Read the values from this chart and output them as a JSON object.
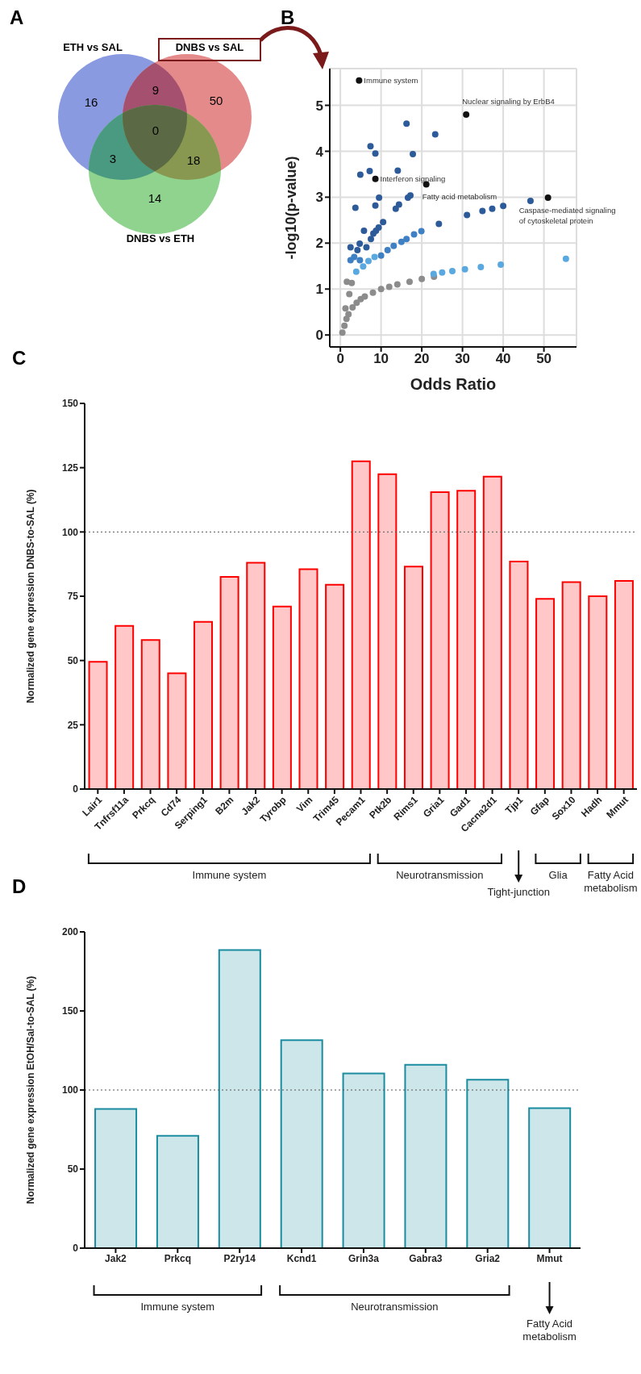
{
  "chart_data": [
    {
      "type": "other",
      "title": "A",
      "categories": [
        null,
        null,
        null,
        null,
        null,
        null,
        null
      ],
      "colors": [
        "#8a9ae0",
        "#a5506e",
        "#e58a8a",
        "#5b6a45",
        "#4a9a82",
        "#889850",
        "#8fd38f"
      ],
      "values": [
        16,
        9,
        50,
        0,
        3,
        18,
        14
      ],
      "data_labels": true,
      "annotations": [
        "ETH vs SAL",
        "DNBS vs SAL",
        "DNBS vs ETH"
      ]
    },
    {
      "type": "scatter",
      "title": "B",
      "xlabel": "Odds Ratio",
      "ylabel": "-log10(p-value)",
      "xlim": [
        -2.6,
        58
      ],
      "xticks": [
        0,
        10,
        20,
        30,
        40,
        50
      ],
      "ylim": [
        -0.26,
        5.8
      ],
      "yticks": [
        0,
        1,
        2,
        3,
        4,
        5
      ],
      "grid": true,
      "marker": "circle",
      "series": [
        {
          "color": "#111111",
          "x": [
            4.6,
            30.9,
            8.6,
            21.1,
            51
          ],
          "values": [
            5.54,
            4.8,
            3.4,
            3.28,
            2.99
          ]
        },
        {
          "color": "#2d5b9a",
          "x": [
            16.25,
            23.3,
            7.4,
            8.6,
            17.8,
            14.1,
            7.2,
            4.9,
            9.5,
            8.6,
            3.7,
            10.5,
            24.2,
            46.7,
            40,
            37.3,
            34.9,
            31.1,
            17.2,
            16.6,
            5.8,
            7.5,
            8.1,
            8.75,
            9.4,
            14.4,
            13.6,
            4.75,
            2.5,
            6.4,
            4.2
          ],
          "values": [
            4.6,
            4.37,
            4.11,
            3.95,
            3.94,
            3.58,
            3.57,
            3.49,
            2.99,
            2.82,
            2.77,
            2.46,
            2.42,
            2.92,
            2.81,
            2.75,
            2.7,
            2.61,
            3.04,
            2.99,
            2.27,
            2.09,
            2.21,
            2.27,
            2.34,
            2.84,
            2.75,
            1.99,
            1.91,
            1.91,
            1.85
          ]
        },
        {
          "color": "#3f7fc4",
          "x": [
            10,
            11.6,
            13.1,
            15,
            16.25,
            18.1,
            19.9,
            4.8,
            2.5,
            3.4
          ],
          "values": [
            1.73,
            1.85,
            1.94,
            2.03,
            2.09,
            2.19,
            2.26,
            1.63,
            1.63,
            1.7
          ]
        },
        {
          "color": "#5aa8e0",
          "x": [
            3.9,
            5.6,
            6.9,
            8.4,
            55.4,
            22.9,
            25,
            27.5,
            30.6,
            34.5,
            39.4
          ],
          "values": [
            1.38,
            1.49,
            1.61,
            1.7,
            1.66,
            1.33,
            1.36,
            1.39,
            1.43,
            1.48,
            1.53
          ]
        },
        {
          "color": "#8c8c8c",
          "x": [
            0.5,
            1,
            1.5,
            2,
            3,
            4,
            5,
            6,
            8,
            10,
            12,
            14,
            17,
            20,
            23,
            1.25,
            2.2,
            2.8,
            1.6
          ],
          "values": [
            0.05,
            0.2,
            0.35,
            0.45,
            0.6,
            0.7,
            0.78,
            0.84,
            0.92,
            1.0,
            1.05,
            1.1,
            1.16,
            1.22,
            1.27,
            0.58,
            0.89,
            1.13,
            1.16
          ]
        }
      ],
      "annotations": [
        {
          "text": "Immune system",
          "x": 4.6,
          "y": 5.54
        },
        {
          "text": "Nuclear signaling by ErbB4",
          "x": 30.9,
          "y": 4.8
        },
        {
          "text": "Interferon signaling",
          "x": 8.6,
          "y": 3.4
        },
        {
          "text": "Fatty acid metabolism",
          "x": 21.1,
          "y": 3.28
        },
        {
          "text": "Caspase-mediated signaling\nof cytoskeletal protein",
          "x": 51,
          "y": 2.99
        }
      ]
    },
    {
      "type": "bar",
      "title": "C",
      "ylabel": "Normalized gene expression DNBS-to-SAL (%)",
      "categories": [
        "Lair1",
        "Tnfrsf11a",
        "Prkcq",
        "Cd74",
        "Serping1",
        "B2m",
        "Jak2",
        "Tyrobp",
        "Vim",
        "Trim45",
        "Pecam1",
        "Ptk2b",
        "Rims1",
        "Gria1",
        "Gad1",
        "Cacna2d1",
        "Tjp1",
        "Gfap",
        "Sox10",
        "Hadh",
        "Mmut"
      ],
      "values": [
        49.5,
        63.5,
        58,
        45,
        65,
        82.5,
        88,
        71,
        85.5,
        79.5,
        127.5,
        122.5,
        86.5,
        115.5,
        116,
        121.5,
        88.5,
        74,
        80.5,
        75,
        81
      ],
      "color": "#ff0000",
      "ylim": [
        0,
        150
      ],
      "yticks": [
        0,
        25,
        50,
        75,
        100,
        125,
        150
      ],
      "ref_lines": [
        {
          "axis": "y",
          "value": 100,
          "color": "#555555",
          "line_style": "dotted"
        }
      ],
      "annotations": [
        "Immune system",
        "Neurotransmission",
        "Tight-junction",
        "Glia",
        "Fatty Acid metabolism"
      ]
    },
    {
      "type": "bar",
      "title": "D",
      "ylabel": "Normalized gene expression EtOH/Sal-to-SAL (%)",
      "categories": [
        "Jak2",
        "Prkcq",
        "P2ry14",
        "Kcnd1",
        "Grin3a",
        "Gabra3",
        "Gria2",
        "Mmut"
      ],
      "values": [
        88,
        71,
        188.5,
        131.5,
        110.5,
        116,
        106.5,
        88.5
      ],
      "color": "#1a8ca0",
      "ylim": [
        0,
        200
      ],
      "yticks": [
        0,
        50,
        100,
        150,
        200
      ],
      "ref_lines": [
        {
          "axis": "y",
          "value": 100,
          "color": "#555555",
          "line_style": "dotted"
        }
      ],
      "annotations": [
        "Immune system",
        "Neurotransmission",
        "Fatty Acid metabolism"
      ]
    }
  ]
}
